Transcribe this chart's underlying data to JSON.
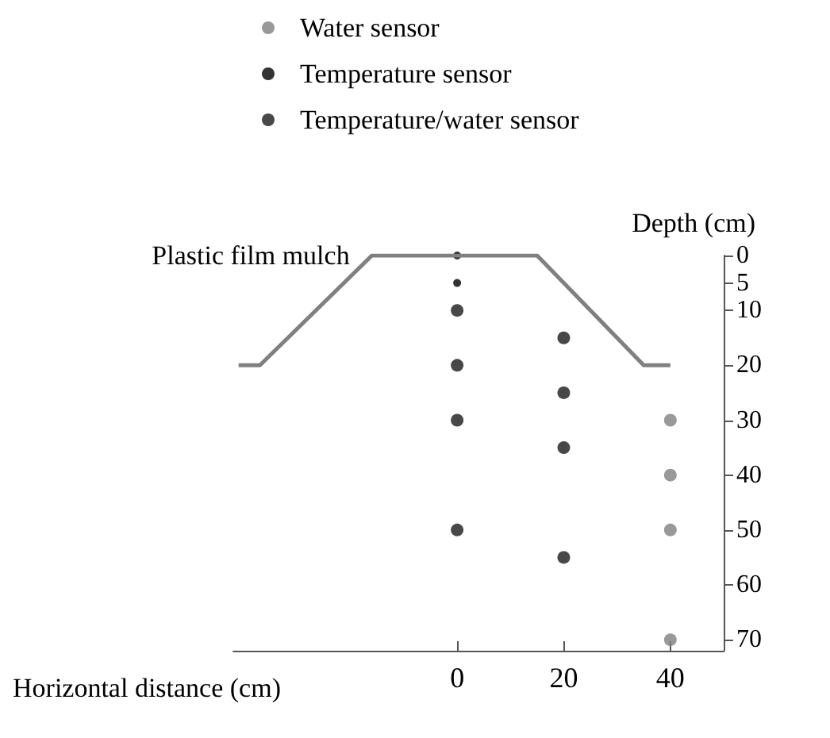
{
  "chart_data": {
    "type": "scatter",
    "xlabel": "Horizontal distance (cm)",
    "ylabel": "Depth (cm)",
    "xlim": [
      -42,
      50
    ],
    "xticks": [
      0,
      20,
      40
    ],
    "ylim": [
      72,
      0
    ],
    "yticks": [
      0,
      5,
      10,
      20,
      30,
      40,
      50,
      60,
      70
    ],
    "legend": "top",
    "grid": false,
    "series": [
      {
        "name": "Water sensor",
        "color": "#7f7f7f",
        "marker": "circle",
        "x": [
          40,
          40,
          40,
          40
        ],
        "values": [
          30,
          40,
          50,
          70
        ]
      },
      {
        "name": "Temperature sensor",
        "color": "#000000",
        "marker": "circle",
        "x": [
          0,
          0
        ],
        "values": [
          0,
          5
        ]
      },
      {
        "name": "Temperature/water sensor",
        "color": "#1a1a1a",
        "marker": "circle",
        "x": [
          0,
          0,
          0,
          0,
          20,
          20,
          20,
          20
        ],
        "values": [
          10,
          20,
          30,
          50,
          15,
          25,
          35,
          55
        ]
      },
      {
        "name": "Plastic film mulch",
        "type": "line",
        "color": "#808080",
        "marker": "none",
        "x": [
          -41,
          -37,
          -16,
          15,
          35,
          40
        ],
        "values": [
          20,
          20,
          0,
          0,
          20,
          20
        ]
      }
    ]
  }
}
